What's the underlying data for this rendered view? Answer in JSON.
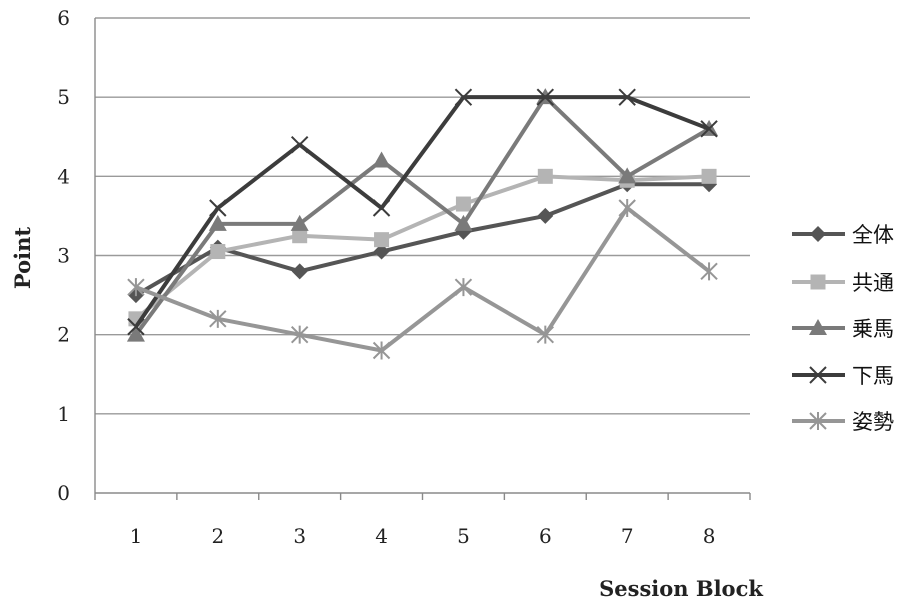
{
  "chart_data": {
    "type": "line",
    "title": "",
    "xlabel": "Session Block",
    "ylabel": "Point",
    "categories": [
      "1",
      "2",
      "3",
      "4",
      "5",
      "6",
      "7",
      "8"
    ],
    "ylim": [
      0,
      6
    ],
    "yticks": [
      "0",
      "1",
      "2",
      "3",
      "4",
      "5",
      "6"
    ],
    "grid": "horizontal",
    "legend": "right",
    "series": [
      {
        "name": "全体",
        "values": [
          2.5,
          3.1,
          2.8,
          3.05,
          3.3,
          3.5,
          3.9,
          3.9
        ],
        "color": "#555555",
        "marker": "diamond"
      },
      {
        "name": "共通",
        "values": [
          2.2,
          3.05,
          3.25,
          3.2,
          3.65,
          4.0,
          3.95,
          4.0
        ],
        "color": "#b4b4b4",
        "marker": "square"
      },
      {
        "name": "乗馬",
        "values": [
          2.0,
          3.4,
          3.4,
          4.2,
          3.4,
          5.0,
          4.0,
          4.6
        ],
        "color": "#7a7a7a",
        "marker": "triangle"
      },
      {
        "name": "下馬",
        "values": [
          2.1,
          3.6,
          4.4,
          3.6,
          5.0,
          5.0,
          5.0,
          4.6
        ],
        "color": "#3c3c3c",
        "marker": "x"
      },
      {
        "name": "姿勢",
        "values": [
          2.6,
          2.2,
          2.0,
          1.8,
          2.6,
          2.0,
          3.6,
          2.8
        ],
        "color": "#969696",
        "marker": "star"
      }
    ]
  }
}
